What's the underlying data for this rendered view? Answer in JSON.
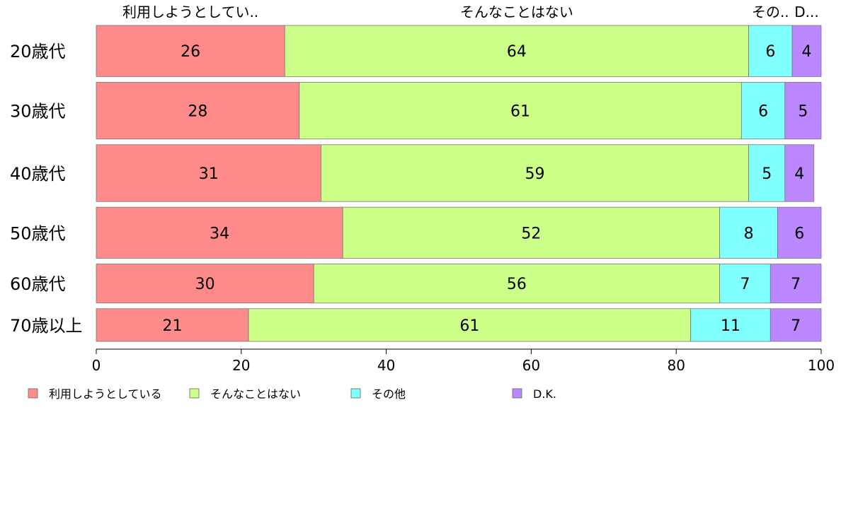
{
  "chart_data": {
    "type": "bar",
    "orientation": "horizontal",
    "stacked": true,
    "categories": [
      "20歳代",
      "30歳代",
      "40歳代",
      "50歳代",
      "60歳代",
      "70歳以上"
    ],
    "series": [
      {
        "name": "利用しようとしている",
        "values": [
          26,
          28,
          31,
          34,
          30,
          21
        ],
        "color": "#FF8A8A"
      },
      {
        "name": "そんなことはない",
        "values": [
          64,
          61,
          59,
          52,
          56,
          61
        ],
        "color": "#CCFF88"
      },
      {
        "name": "その他",
        "values": [
          6,
          6,
          5,
          8,
          7,
          11
        ],
        "color": "#80FFFF"
      },
      {
        "name": "D.K.",
        "values": [
          4,
          5,
          4,
          6,
          7,
          7
        ],
        "color": "#BB88FF"
      }
    ],
    "top_labels": [
      "利用しようとしてい..",
      "そんなことはない",
      "その..",
      "D..."
    ],
    "bar_weights": [
      72,
      80,
      80,
      72,
      55,
      46
    ],
    "xlim": [
      0,
      100
    ],
    "xticks": [
      0,
      20,
      40,
      60,
      80,
      100
    ],
    "grid": false,
    "legend_position": "bottom-left"
  }
}
